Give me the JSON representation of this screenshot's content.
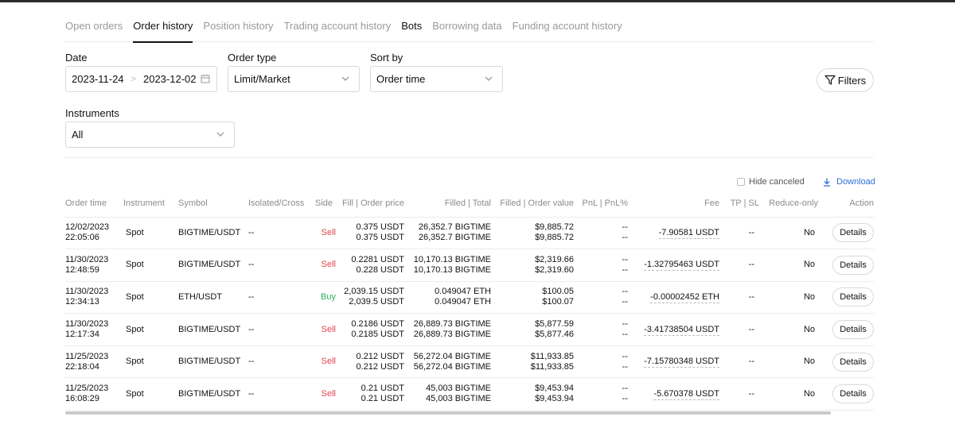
{
  "tabs": [
    {
      "label": "Open orders",
      "state": "inactive"
    },
    {
      "label": "Order history",
      "state": "active"
    },
    {
      "label": "Position history",
      "state": "inactive"
    },
    {
      "label": "Trading account history",
      "state": "inactive"
    },
    {
      "label": "Bots",
      "state": "bold"
    },
    {
      "label": "Borrowing data",
      "state": "inactive"
    },
    {
      "label": "Funding account history",
      "state": "inactive"
    }
  ],
  "filters": {
    "date_label": "Date",
    "date_from": "2023-11-24",
    "date_sep": ">",
    "date_to": "2023-12-02",
    "order_type_label": "Order type",
    "order_type_value": "Limit/Market",
    "sort_by_label": "Sort by",
    "sort_by_value": "Order time",
    "instruments_label": "Instruments",
    "instruments_value": "All",
    "filters_button": "Filters"
  },
  "toolbar": {
    "hide_canceled": "Hide canceled",
    "download": "Download"
  },
  "table": {
    "columns": [
      "Order time",
      "Instrument",
      "Symbol",
      "Isolated/Cross",
      "Side",
      "Fill | Order price",
      "Filled | Total",
      "Filled | Order value",
      "PnL | PnL%",
      "Fee",
      "TP | SL",
      "Reduce-only",
      "Action"
    ],
    "rows": [
      {
        "date": "12/02/2023",
        "time": "22:05:06",
        "instrument": "Spot",
        "symbol": "BIGTIME/USDT",
        "margin": "--",
        "side": "Sell",
        "fill_price": "0.375 USDT",
        "order_price": "0.375 USDT",
        "filled": "26,352.7 BIGTIME",
        "total": "26,352.7 BIGTIME",
        "filled_value": "$9,885.72",
        "order_value": "$9,885.72",
        "pnl": "--",
        "pnl_pct": "--",
        "fee": "-7.90581 USDT",
        "tpsl": "--",
        "reduce_only": "No",
        "action": "Details"
      },
      {
        "date": "11/30/2023",
        "time": "12:48:59",
        "instrument": "Spot",
        "symbol": "BIGTIME/USDT",
        "margin": "--",
        "side": "Sell",
        "fill_price": "0.2281 USDT",
        "order_price": "0.228 USDT",
        "filled": "10,170.13 BIGTIME",
        "total": "10,170.13 BIGTIME",
        "filled_value": "$2,319.66",
        "order_value": "$2,319.60",
        "pnl": "--",
        "pnl_pct": "--",
        "fee": "-1.32795463 USDT",
        "tpsl": "--",
        "reduce_only": "No",
        "action": "Details"
      },
      {
        "date": "11/30/2023",
        "time": "12:34:13",
        "instrument": "Spot",
        "symbol": "ETH/USDT",
        "margin": "--",
        "side": "Buy",
        "fill_price": "2,039.15 USDT",
        "order_price": "2,039.5 USDT",
        "filled": "0.049047 ETH",
        "total": "0.049047 ETH",
        "filled_value": "$100.05",
        "order_value": "$100.07",
        "pnl": "--",
        "pnl_pct": "--",
        "fee": "-0.00002452 ETH",
        "tpsl": "--",
        "reduce_only": "No",
        "action": "Details"
      },
      {
        "date": "11/30/2023",
        "time": "12:17:34",
        "instrument": "Spot",
        "symbol": "BIGTIME/USDT",
        "margin": "--",
        "side": "Sell",
        "fill_price": "0.2186 USDT",
        "order_price": "0.2185 USDT",
        "filled": "26,889.73 BIGTIME",
        "total": "26,889.73 BIGTIME",
        "filled_value": "$5,877.59",
        "order_value": "$5,877.46",
        "pnl": "--",
        "pnl_pct": "--",
        "fee": "-3.41738504 USDT",
        "tpsl": "--",
        "reduce_only": "No",
        "action": "Details"
      },
      {
        "date": "11/25/2023",
        "time": "22:18:04",
        "instrument": "Spot",
        "symbol": "BIGTIME/USDT",
        "margin": "--",
        "side": "Sell",
        "fill_price": "0.212 USDT",
        "order_price": "0.212 USDT",
        "filled": "56,272.04 BIGTIME",
        "total": "56,272.04 BIGTIME",
        "filled_value": "$11,933.85",
        "order_value": "$11,933.85",
        "pnl": "--",
        "pnl_pct": "--",
        "fee": "-7.15780348 USDT",
        "tpsl": "--",
        "reduce_only": "No",
        "action": "Details"
      },
      {
        "date": "11/25/2023",
        "time": "16:08:29",
        "instrument": "Spot",
        "symbol": "BIGTIME/USDT",
        "margin": "--",
        "side": "Sell",
        "fill_price": "0.21 USDT",
        "order_price": "0.21 USDT",
        "filled": "45,003 BIGTIME",
        "total": "45,003 BIGTIME",
        "filled_value": "$9,453.94",
        "order_value": "$9,453.94",
        "pnl": "--",
        "pnl_pct": "--",
        "fee": "-5.670378 USDT",
        "tpsl": "--",
        "reduce_only": "No",
        "action": "Details"
      }
    ]
  },
  "colors": {
    "sell": "#e0464f",
    "buy": "#2bb25a",
    "link": "#2f6fd6"
  }
}
